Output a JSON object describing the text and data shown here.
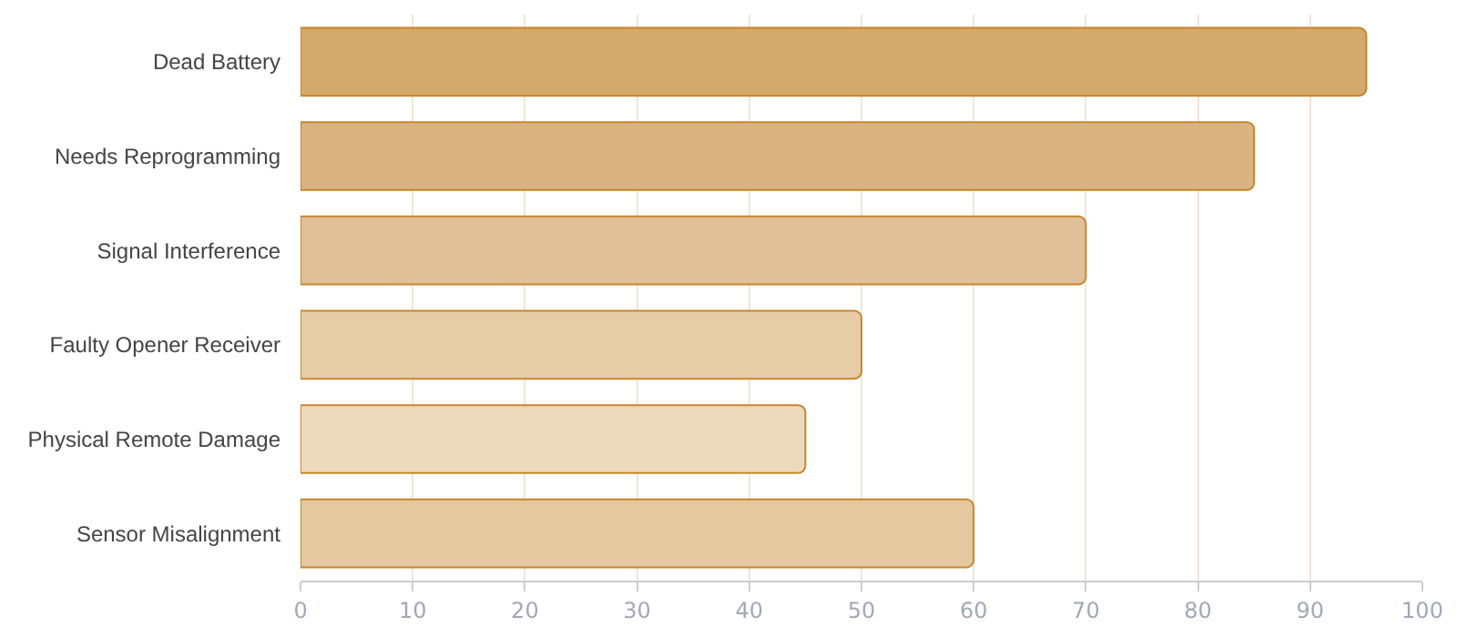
{
  "chart_data": {
    "type": "bar",
    "orientation": "horizontal",
    "categories": [
      "Dead Battery",
      "Needs Reprogramming",
      "Signal Interference",
      "Faulty Opener Receiver",
      "Physical Remote Damage",
      "Sensor Misalignment"
    ],
    "values": [
      95,
      85,
      70,
      50,
      45,
      60
    ],
    "colors": [
      "#d4a96c",
      "#d9b382",
      "#dfc098",
      "#e6cda8",
      "#ecdabf",
      "#e3c8a0"
    ],
    "xlim": [
      0,
      100
    ],
    "xticks": [
      0,
      10,
      20,
      30,
      40,
      50,
      60,
      70,
      80,
      90,
      100
    ],
    "grid": "x"
  }
}
